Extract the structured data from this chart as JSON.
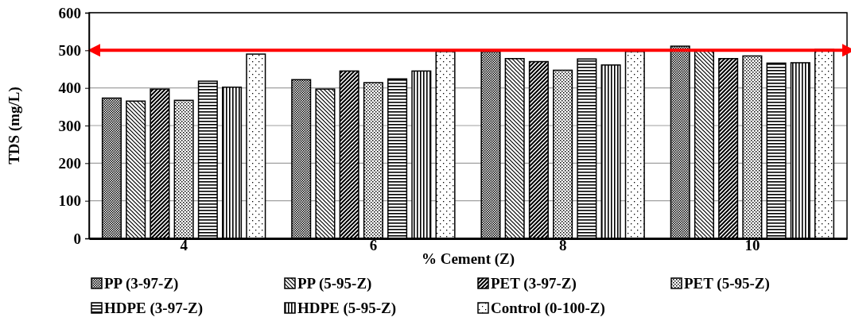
{
  "chart_data": {
    "type": "bar",
    "xlabel": "% Cement (Z)",
    "ylabel": "TDS (mg/L)",
    "categories": [
      "4",
      "6",
      "8",
      "10"
    ],
    "series": [
      {
        "name": "PP (3-97-Z)",
        "color": "#000000",
        "values": [
          373,
          422,
          497,
          511
        ]
      },
      {
        "name": "PP (5-95-Z)",
        "color": "#000000",
        "values": [
          365,
          397,
          478,
          500
        ]
      },
      {
        "name": "PET (3-97-Z)",
        "color": "#000000",
        "values": [
          397,
          445,
          470,
          478
        ]
      },
      {
        "name": "PET (5-95-Z)",
        "color": "#000000",
        "values": [
          367,
          414,
          447,
          485
        ]
      },
      {
        "name": "HDPE (3-97-Z)",
        "color": "#000000",
        "values": [
          418,
          424,
          477,
          466
        ]
      },
      {
        "name": "HDPE (5-95-Z)",
        "color": "#000000",
        "values": [
          402,
          445,
          461,
          467
        ]
      },
      {
        "name": "Control (0-100-Z)",
        "color": "#000000",
        "values": [
          490,
          497,
          497,
          502
        ]
      }
    ],
    "ylim": [
      0,
      600
    ],
    "yticks": [
      0,
      100,
      200,
      300,
      400,
      500,
      600
    ],
    "grid": "y",
    "legend": "bottom",
    "ref_lines": [
      {
        "axis": "y",
        "value": 500,
        "color": "#ff0000"
      }
    ]
  }
}
